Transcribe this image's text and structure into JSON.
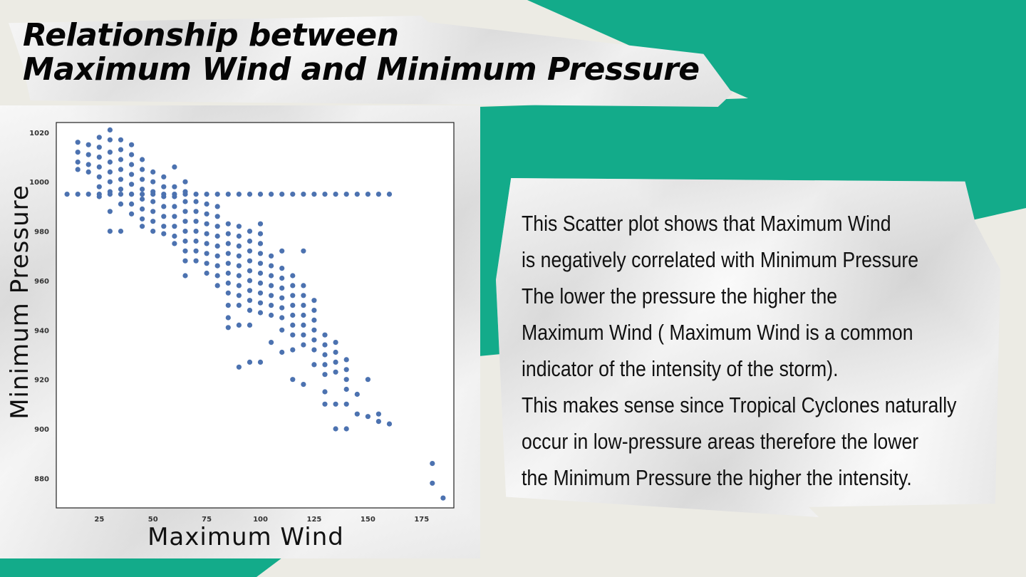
{
  "title": {
    "line1": "Relationship between",
    "line2": "Maximum Wind and Minimum Pressure"
  },
  "body": {
    "lines": [
      "This Scatter plot shows that Maximum Wind",
      "is negatively correlated with Minimum Pressure",
      "The lower the pressure the higher the",
      "Maximum Wind ( Maximum Wind is a common",
      "indicator of the intensity of the storm).",
      "This makes sense since Tropical Cyclones naturally",
      "occur in low-pressure areas therefore the lower",
      "the Minimum Pressure the higher the intensity."
    ]
  },
  "colors": {
    "background": "#ecebe4",
    "accent_green": "#13ab8a",
    "marker": "#4c72b0"
  },
  "chart_data": {
    "type": "scatter",
    "xlabel": "Maximum Wind",
    "ylabel": "Minimum Pressure",
    "xlim": [
      5,
      190
    ],
    "ylim": [
      868,
      1024
    ],
    "xticks": [
      25,
      50,
      75,
      100,
      125,
      150,
      175
    ],
    "yticks": [
      880,
      900,
      920,
      940,
      960,
      980,
      1000,
      1020
    ],
    "grid": false,
    "legend": "none",
    "points": [
      [
        10,
        995
      ],
      [
        15,
        995
      ],
      [
        20,
        995
      ],
      [
        25,
        995
      ],
      [
        30,
        995
      ],
      [
        35,
        995
      ],
      [
        40,
        995
      ],
      [
        45,
        995
      ],
      [
        50,
        995
      ],
      [
        55,
        995
      ],
      [
        60,
        995
      ],
      [
        65,
        995
      ],
      [
        70,
        995
      ],
      [
        75,
        995
      ],
      [
        80,
        995
      ],
      [
        85,
        995
      ],
      [
        90,
        995
      ],
      [
        95,
        995
      ],
      [
        100,
        995
      ],
      [
        105,
        995
      ],
      [
        110,
        995
      ],
      [
        115,
        995
      ],
      [
        120,
        995
      ],
      [
        125,
        995
      ],
      [
        130,
        995
      ],
      [
        135,
        995
      ],
      [
        140,
        995
      ],
      [
        145,
        995
      ],
      [
        150,
        995
      ],
      [
        155,
        995
      ],
      [
        160,
        995
      ],
      [
        15,
        1016
      ],
      [
        15,
        1012
      ],
      [
        15,
        1008
      ],
      [
        15,
        1005
      ],
      [
        20,
        1015
      ],
      [
        20,
        1011
      ],
      [
        20,
        1007
      ],
      [
        20,
        1004
      ],
      [
        25,
        1018
      ],
      [
        25,
        1014
      ],
      [
        25,
        1010
      ],
      [
        25,
        1006
      ],
      [
        25,
        1002
      ],
      [
        25,
        998
      ],
      [
        25,
        994
      ],
      [
        30,
        1021
      ],
      [
        30,
        1017
      ],
      [
        30,
        1012
      ],
      [
        30,
        1008
      ],
      [
        30,
        1004
      ],
      [
        30,
        1000
      ],
      [
        30,
        996
      ],
      [
        30,
        980
      ],
      [
        30,
        988
      ],
      [
        35,
        1017
      ],
      [
        35,
        1013
      ],
      [
        35,
        1009
      ],
      [
        35,
        1005
      ],
      [
        35,
        1001
      ],
      [
        35,
        997
      ],
      [
        35,
        991
      ],
      [
        35,
        980
      ],
      [
        40,
        1015
      ],
      [
        40,
        1011
      ],
      [
        40,
        1007
      ],
      [
        40,
        1003
      ],
      [
        40,
        999
      ],
      [
        40,
        995
      ],
      [
        40,
        991
      ],
      [
        40,
        987
      ],
      [
        45,
        1009
      ],
      [
        45,
        1005
      ],
      [
        45,
        1001
      ],
      [
        45,
        997
      ],
      [
        45,
        993
      ],
      [
        45,
        989
      ],
      [
        45,
        985
      ],
      [
        45,
        982
      ],
      [
        50,
        1004
      ],
      [
        50,
        1000
      ],
      [
        50,
        996
      ],
      [
        50,
        992
      ],
      [
        50,
        988
      ],
      [
        50,
        984
      ],
      [
        50,
        980
      ],
      [
        55,
        1002
      ],
      [
        55,
        998
      ],
      [
        55,
        994
      ],
      [
        55,
        990
      ],
      [
        55,
        986
      ],
      [
        55,
        982
      ],
      [
        55,
        979
      ],
      [
        60,
        1006
      ],
      [
        60,
        998
      ],
      [
        60,
        994
      ],
      [
        60,
        990
      ],
      [
        60,
        986
      ],
      [
        60,
        982
      ],
      [
        60,
        978
      ],
      [
        60,
        975
      ],
      [
        65,
        1000
      ],
      [
        65,
        996
      ],
      [
        65,
        992
      ],
      [
        65,
        988
      ],
      [
        65,
        984
      ],
      [
        65,
        980
      ],
      [
        65,
        976
      ],
      [
        65,
        972
      ],
      [
        65,
        968
      ],
      [
        65,
        962
      ],
      [
        70,
        992
      ],
      [
        70,
        988
      ],
      [
        70,
        984
      ],
      [
        70,
        980
      ],
      [
        70,
        976
      ],
      [
        70,
        972
      ],
      [
        70,
        968
      ],
      [
        75,
        991
      ],
      [
        75,
        987
      ],
      [
        75,
        983
      ],
      [
        75,
        979
      ],
      [
        75,
        975
      ],
      [
        75,
        971
      ],
      [
        75,
        967
      ],
      [
        75,
        963
      ],
      [
        80,
        990
      ],
      [
        80,
        986
      ],
      [
        80,
        982
      ],
      [
        80,
        978
      ],
      [
        80,
        974
      ],
      [
        80,
        970
      ],
      [
        80,
        966
      ],
      [
        80,
        962
      ],
      [
        80,
        958
      ],
      [
        85,
        983
      ],
      [
        85,
        979
      ],
      [
        85,
        975
      ],
      [
        85,
        971
      ],
      [
        85,
        967
      ],
      [
        85,
        963
      ],
      [
        85,
        959
      ],
      [
        85,
        955
      ],
      [
        85,
        950
      ],
      [
        85,
        945
      ],
      [
        85,
        941
      ],
      [
        90,
        982
      ],
      [
        90,
        978
      ],
      [
        90,
        974
      ],
      [
        90,
        970
      ],
      [
        90,
        966
      ],
      [
        90,
        962
      ],
      [
        90,
        958
      ],
      [
        90,
        954
      ],
      [
        90,
        950
      ],
      [
        90,
        942
      ],
      [
        90,
        925
      ],
      [
        95,
        980
      ],
      [
        95,
        976
      ],
      [
        95,
        972
      ],
      [
        95,
        968
      ],
      [
        95,
        964
      ],
      [
        95,
        960
      ],
      [
        95,
        956
      ],
      [
        95,
        952
      ],
      [
        95,
        948
      ],
      [
        95,
        942
      ],
      [
        95,
        927
      ],
      [
        100,
        983
      ],
      [
        100,
        979
      ],
      [
        100,
        975
      ],
      [
        100,
        971
      ],
      [
        100,
        967
      ],
      [
        100,
        963
      ],
      [
        100,
        959
      ],
      [
        100,
        955
      ],
      [
        100,
        951
      ],
      [
        100,
        947
      ],
      [
        100,
        927
      ],
      [
        105,
        970
      ],
      [
        105,
        966
      ],
      [
        105,
        962
      ],
      [
        105,
        958
      ],
      [
        105,
        954
      ],
      [
        105,
        950
      ],
      [
        105,
        946
      ],
      [
        105,
        935
      ],
      [
        110,
        972
      ],
      [
        110,
        965
      ],
      [
        110,
        961
      ],
      [
        110,
        957
      ],
      [
        110,
        953
      ],
      [
        110,
        949
      ],
      [
        110,
        945
      ],
      [
        110,
        940
      ],
      [
        110,
        931
      ],
      [
        115,
        962
      ],
      [
        115,
        958
      ],
      [
        115,
        954
      ],
      [
        115,
        950
      ],
      [
        115,
        946
      ],
      [
        115,
        942
      ],
      [
        115,
        938
      ],
      [
        115,
        932
      ],
      [
        115,
        920
      ],
      [
        120,
        972
      ],
      [
        120,
        958
      ],
      [
        120,
        954
      ],
      [
        120,
        950
      ],
      [
        120,
        946
      ],
      [
        120,
        942
      ],
      [
        120,
        938
      ],
      [
        120,
        934
      ],
      [
        120,
        918
      ],
      [
        125,
        952
      ],
      [
        125,
        948
      ],
      [
        125,
        944
      ],
      [
        125,
        940
      ],
      [
        125,
        936
      ],
      [
        125,
        932
      ],
      [
        125,
        926
      ],
      [
        130,
        938
      ],
      [
        130,
        934
      ],
      [
        130,
        930
      ],
      [
        130,
        926
      ],
      [
        130,
        922
      ],
      [
        130,
        915
      ],
      [
        130,
        910
      ],
      [
        135,
        935
      ],
      [
        135,
        931
      ],
      [
        135,
        927
      ],
      [
        135,
        923
      ],
      [
        135,
        910
      ],
      [
        135,
        900
      ],
      [
        140,
        928
      ],
      [
        140,
        924
      ],
      [
        140,
        920
      ],
      [
        140,
        916
      ],
      [
        140,
        910
      ],
      [
        140,
        900
      ],
      [
        145,
        914
      ],
      [
        145,
        906
      ],
      [
        150,
        920
      ],
      [
        150,
        905
      ],
      [
        155,
        906
      ],
      [
        155,
        903
      ],
      [
        160,
        902
      ],
      [
        180,
        886
      ],
      [
        180,
        878
      ],
      [
        185,
        872
      ]
    ]
  }
}
